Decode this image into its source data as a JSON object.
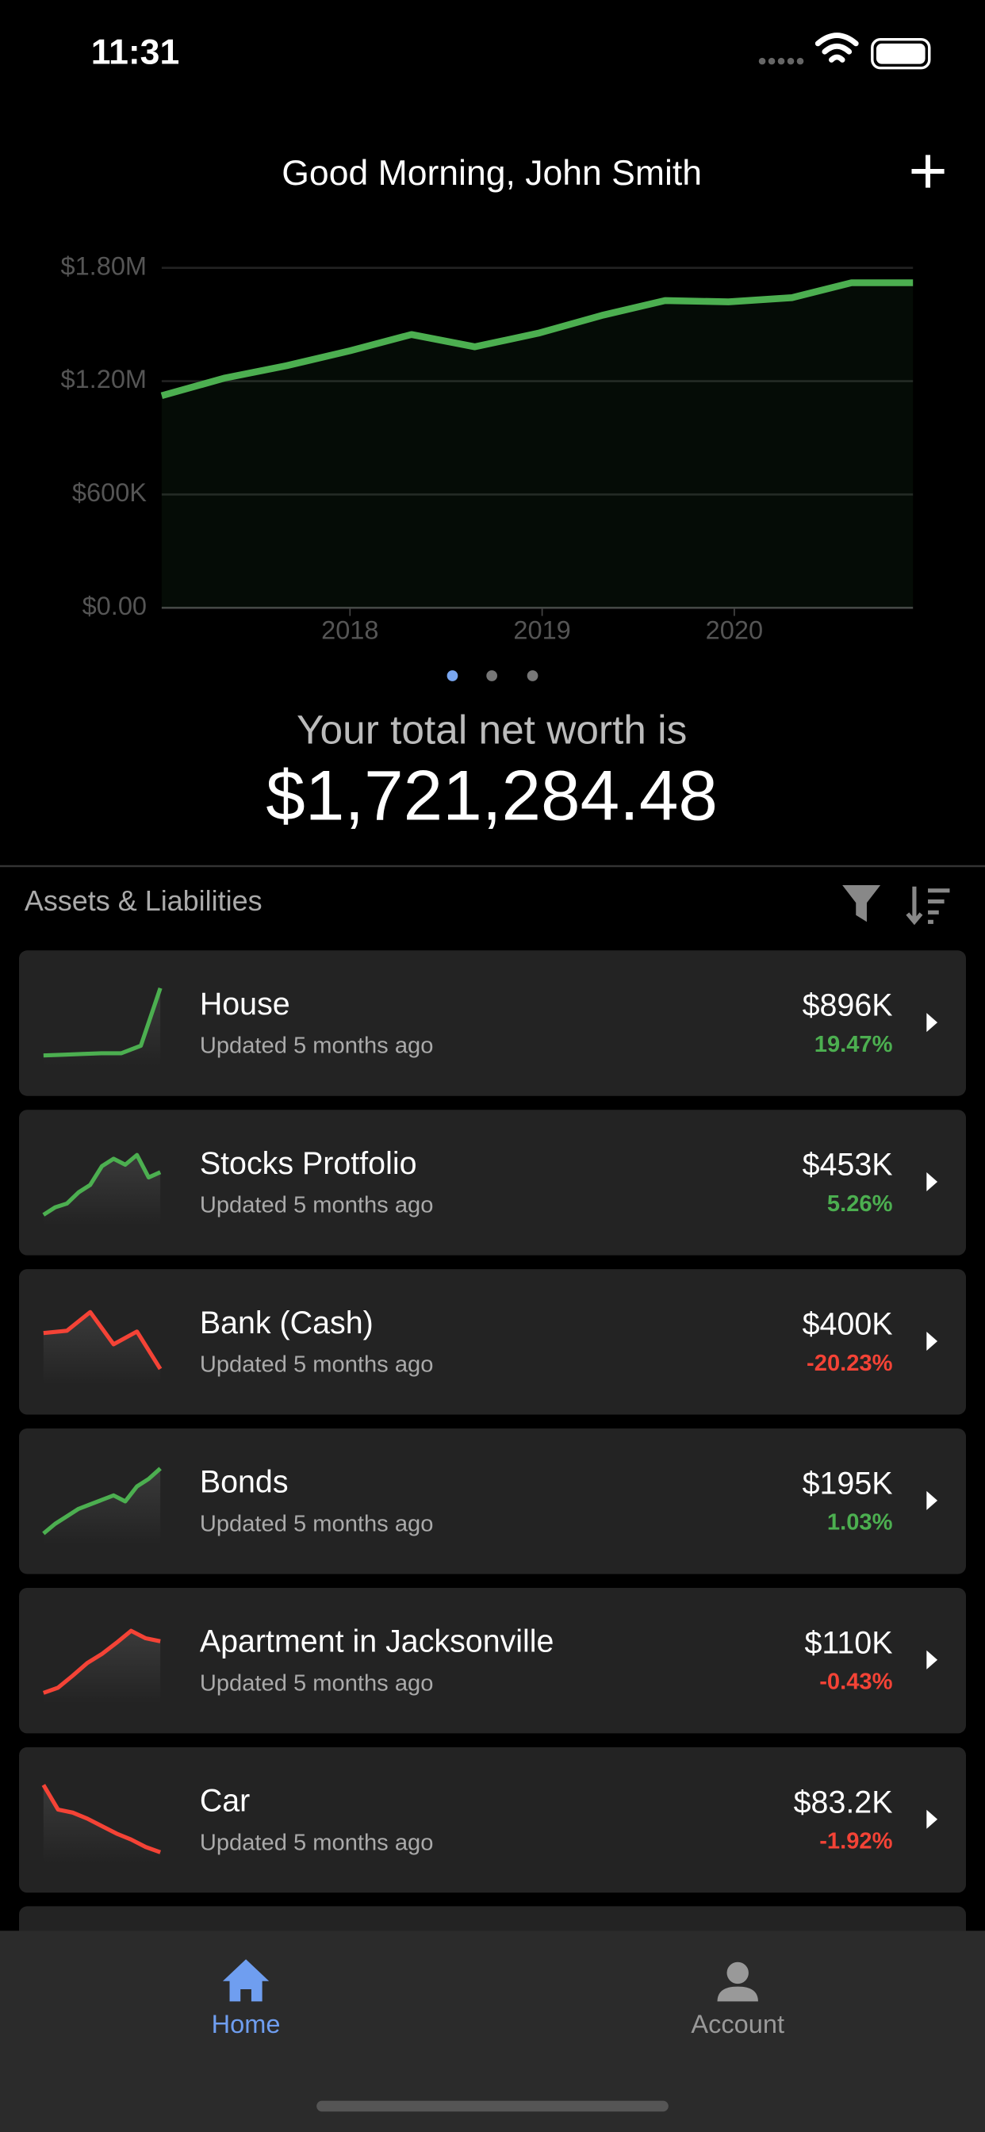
{
  "status": {
    "time": "11:31"
  },
  "header": {
    "title": "Good Morning, John Smith"
  },
  "chart_data": {
    "type": "area",
    "x": [
      2017.02,
      2017.35,
      2017.67,
      2018.0,
      2018.32,
      2018.65,
      2018.98,
      2019.31,
      2019.64,
      2019.97,
      2020.3,
      2020.61,
      2020.93
    ],
    "values": [
      1123000,
      1217000,
      1282000,
      1361000,
      1447000,
      1382000,
      1454000,
      1548000,
      1627000,
      1620000,
      1642000,
      1721000,
      1721000
    ],
    "color": "#4caf50",
    "xlim": [
      2017.02,
      2020.93
    ],
    "xticks": [
      2018,
      2019,
      2020
    ],
    "ylim": [
      0,
      1800000
    ],
    "yticks": [
      {
        "value": 0,
        "label": "$0.00"
      },
      {
        "value": 600000,
        "label": "$600K"
      },
      {
        "value": 1200000,
        "label": "$1.20M"
      },
      {
        "value": 1800000,
        "label": "$1.80M"
      }
    ],
    "grid": true
  },
  "summary": {
    "label": "Your total net worth is",
    "value": "$1,721,284.48"
  },
  "section": {
    "title": "Assets & Liabilities"
  },
  "assets": [
    {
      "name": "House",
      "updated": "Updated 5 months ago",
      "value": "$896K",
      "change": "19.47%",
      "color": "#4caf50",
      "spark": [
        5,
        6,
        7,
        8,
        8,
        18,
        95
      ]
    },
    {
      "name": "Stocks Protfolio",
      "updated": "Updated 5 months ago",
      "value": "$453K",
      "change": "5.26%",
      "color": "#4caf50",
      "spark": [
        5,
        15,
        20,
        35,
        45,
        70,
        80,
        72,
        85,
        55,
        62
      ]
    },
    {
      "name": "Bank (Cash)",
      "updated": "Updated 5 months ago",
      "value": "$400K",
      "change": "-20.23%",
      "color": "#f44336",
      "spark": [
        60,
        63,
        88,
        45,
        62,
        12
      ]
    },
    {
      "name": "Bonds",
      "updated": "Updated 5 months ago",
      "value": "$195K",
      "change": "1.03%",
      "color": "#4caf50",
      "spark": [
        5,
        18,
        28,
        38,
        44,
        50,
        56,
        48,
        68,
        78,
        92
      ]
    },
    {
      "name": "Apartment in Jacksonville",
      "updated": "Updated 5 months ago",
      "value": "$110K",
      "change": "-0.43%",
      "color": "#f44336",
      "spark": [
        5,
        12,
        28,
        45,
        57,
        72,
        88,
        78,
        74
      ]
    },
    {
      "name": "Car",
      "updated": "Updated 5 months ago",
      "value": "$83.2K",
      "change": "-1.92%",
      "color": "#f44336",
      "spark": [
        95,
        62,
        58,
        50,
        40,
        30,
        22,
        12,
        5
      ]
    }
  ],
  "tabs": [
    {
      "label": "Home"
    },
    {
      "label": "Account"
    }
  ]
}
